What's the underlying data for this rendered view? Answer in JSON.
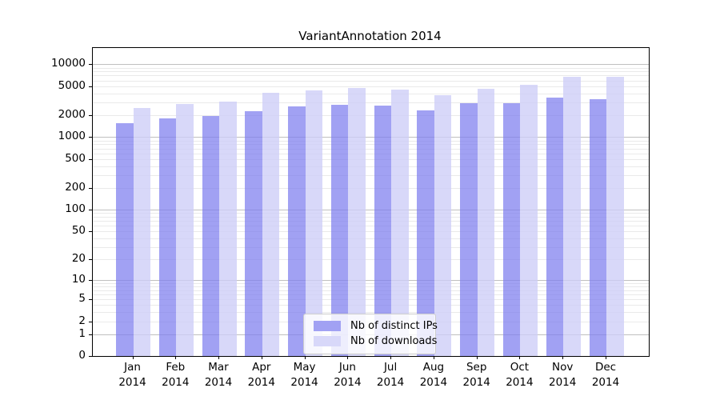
{
  "title": "VariantAnnotation 2014",
  "chart_data": {
    "type": "bar",
    "title": "VariantAnnotation 2014",
    "categories": [
      "Jan 2014",
      "Feb 2014",
      "Mar 2014",
      "Apr 2014",
      "May 2014",
      "Jun 2014",
      "Jul 2014",
      "Aug 2014",
      "Sep 2014",
      "Oct 2014",
      "Nov 2014",
      "Dec 2014"
    ],
    "series": [
      {
        "name": "Nb of distinct IPs",
        "color": "#a1a1f3",
        "bar_color": "rgba(125,125,238,0.72)",
        "values": [
          1560,
          1820,
          1930,
          2300,
          2640,
          2750,
          2680,
          2320,
          2890,
          2940,
          3510,
          3310
        ]
      },
      {
        "name": "Nb of downloads",
        "color": "#d8d8f9",
        "bar_color": "rgba(205,205,247,0.78)",
        "values": [
          2520,
          2860,
          3070,
          4080,
          4400,
          4680,
          4450,
          3730,
          4600,
          5220,
          6670,
          6670
        ]
      }
    ],
    "y_ticks": [
      0,
      1,
      2,
      5,
      10,
      20,
      50,
      100,
      200,
      500,
      1000,
      2000,
      5000,
      10000
    ],
    "y_scale": "log10(1+x)",
    "y_max": 16700,
    "xlabel": "",
    "ylabel": "",
    "grid": true,
    "legend_position": "lower center",
    "colors": {
      "major_grid": "#c0c0c0",
      "minor_grid": "#eaeaea",
      "spine": "#000000"
    }
  }
}
